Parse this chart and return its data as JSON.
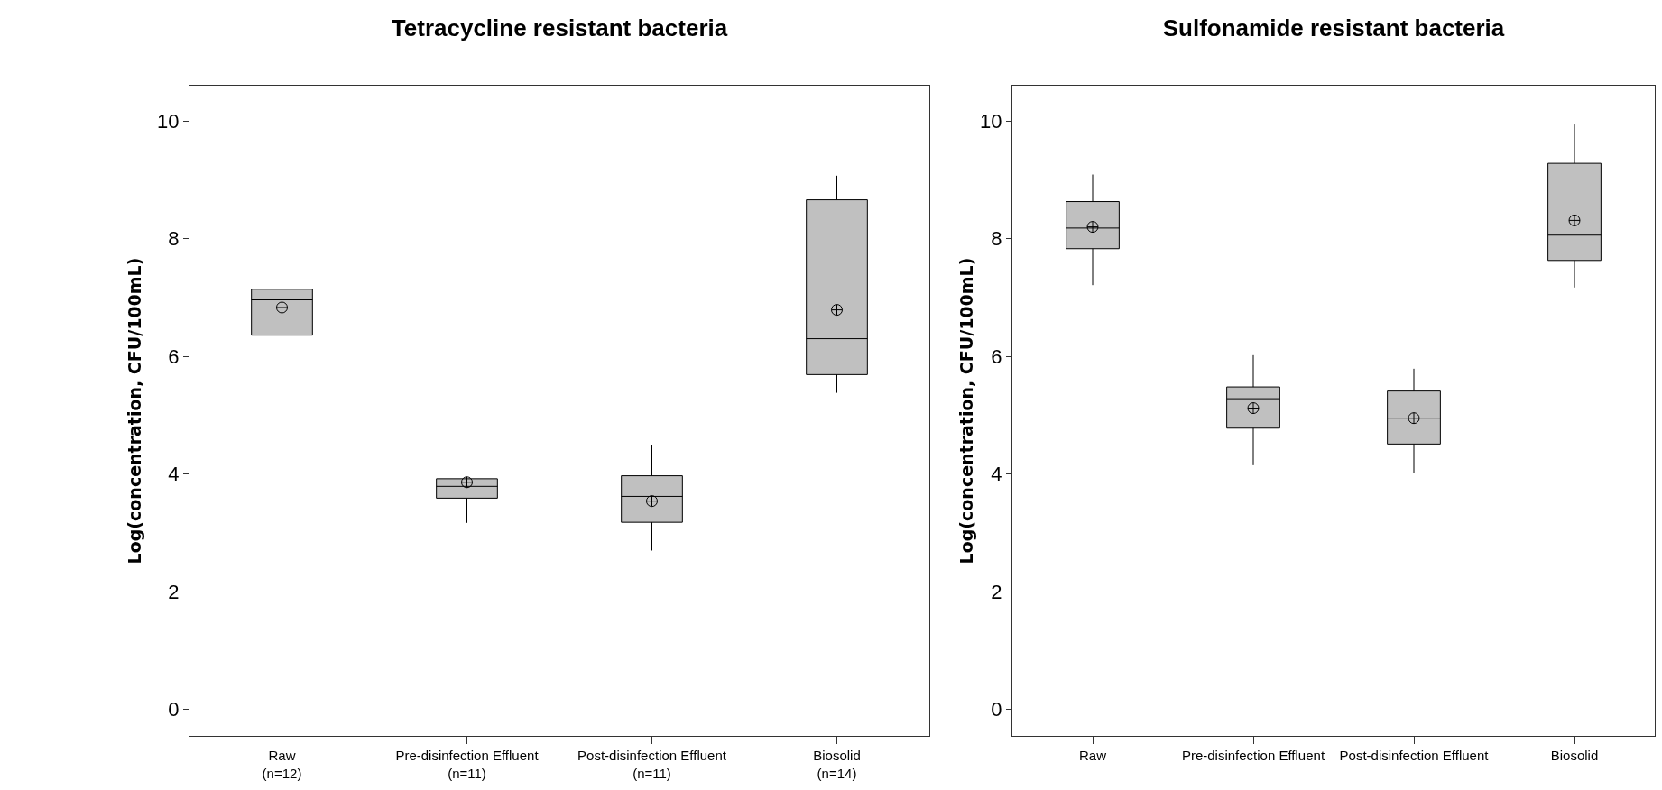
{
  "chart_data": [
    {
      "type": "box",
      "title": "Tetracycline resistant bacteria",
      "ylabel": "Log(concentration, CFU/100mL)",
      "categories": [
        "Raw\n(n=12)",
        "Pre-disinfection Effluent\n(n=11)",
        "Post-disinfection Effluent\n(n=11)",
        "Biosolid\n(n=14)"
      ],
      "color": "#c0c0c0",
      "marker": "circle",
      "grid": false,
      "ylim": [
        -0.45,
        10.6
      ],
      "yticks": [
        0,
        2,
        4,
        6,
        8,
        10
      ],
      "boxes": [
        {
          "low": 6.17,
          "q1": 6.36,
          "median": 6.96,
          "q3": 7.14,
          "high": 7.39,
          "mean": 6.83
        },
        {
          "low": 3.17,
          "q1": 3.59,
          "median": 3.79,
          "q3": 3.92,
          "high": 3.95,
          "mean": 3.86
        },
        {
          "low": 2.7,
          "q1": 3.18,
          "median": 3.62,
          "q3": 3.97,
          "high": 4.5,
          "mean": 3.54
        },
        {
          "low": 5.38,
          "q1": 5.69,
          "median": 6.3,
          "q3": 8.66,
          "high": 9.07,
          "mean": 6.79
        }
      ]
    },
    {
      "type": "box",
      "title": "Sulfonamide resistant bacteria",
      "ylabel": "Log(concentration, CFU/100mL)",
      "categories": [
        "Raw",
        "Pre-disinfection Effluent",
        "Post-disinfection Effluent",
        "Biosolid"
      ],
      "color": "#c0c0c0",
      "marker": "circle",
      "grid": false,
      "ylim": [
        -0.45,
        10.6
      ],
      "yticks": [
        0,
        2,
        4,
        6,
        8,
        10
      ],
      "boxes": [
        {
          "low": 7.21,
          "q1": 7.83,
          "median": 8.18,
          "q3": 8.63,
          "high": 9.09,
          "mean": 8.2
        },
        {
          "low": 4.15,
          "q1": 4.78,
          "median": 5.28,
          "q3": 5.48,
          "high": 6.02,
          "mean": 5.12
        },
        {
          "low": 4.01,
          "q1": 4.51,
          "median": 4.95,
          "q3": 5.41,
          "high": 5.79,
          "mean": 4.95
        },
        {
          "low": 7.17,
          "q1": 7.63,
          "median": 8.06,
          "q3": 9.28,
          "high": 9.94,
          "mean": 8.31
        }
      ]
    }
  ]
}
